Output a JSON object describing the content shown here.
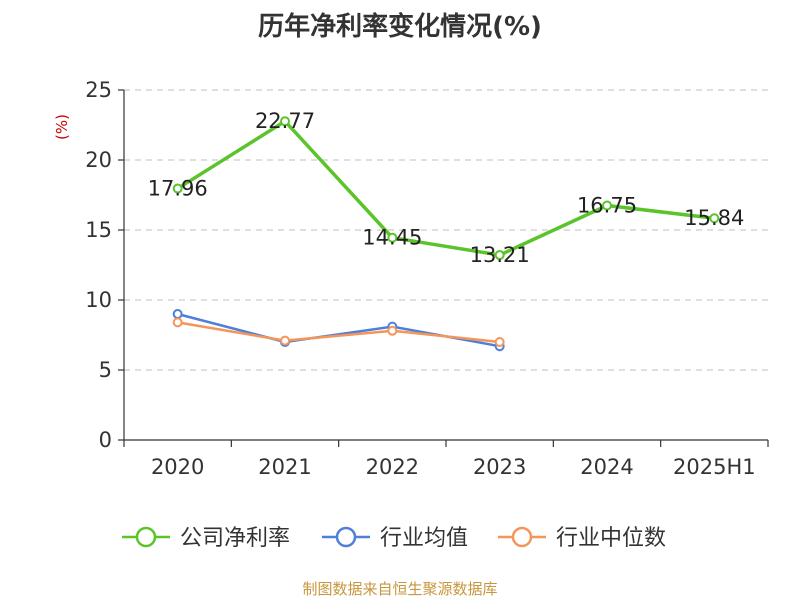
{
  "chart_data": {
    "type": "line",
    "title": "历年净利率变化情况(%)",
    "ylabel": "(%)",
    "xlabel": "",
    "categories": [
      "2020",
      "2021",
      "2022",
      "2023",
      "2024",
      "2025H1"
    ],
    "ylim": [
      0,
      25
    ],
    "yticks": [
      0,
      5,
      10,
      15,
      20,
      25
    ],
    "grid": true,
    "legend_position": "bottom",
    "series": [
      {
        "name": "公司净利率",
        "color": "#5cc42b",
        "values": [
          17.96,
          22.77,
          14.45,
          13.21,
          16.75,
          15.84
        ],
        "labels": [
          "17.96",
          "22.77",
          "14.45",
          "13.21",
          "16.75",
          "15.84"
        ]
      },
      {
        "name": "行业均值",
        "color": "#4f7fd9",
        "values": [
          9.0,
          7.0,
          8.1,
          6.7,
          null,
          null
        ]
      },
      {
        "name": "行业中位数",
        "color": "#f49559",
        "values": [
          8.4,
          7.1,
          7.8,
          7.0,
          null,
          null
        ]
      }
    ]
  },
  "source": "制图数据来自恒生聚源数据库"
}
